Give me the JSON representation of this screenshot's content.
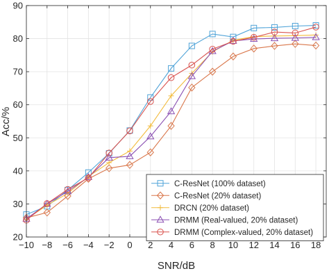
{
  "chart_data": {
    "type": "line",
    "xlabel": "SNR/dB",
    "ylabel": "Acc/%",
    "xlim": [
      -10,
      19
    ],
    "ylim": [
      20,
      90
    ],
    "xticks": [
      -10,
      -8,
      -6,
      -4,
      -2,
      0,
      2,
      4,
      6,
      8,
      10,
      12,
      14,
      16,
      18
    ],
    "xtick_labels": [
      "−10",
      "−8",
      "−6",
      "−4",
      "−2",
      "0",
      "2",
      "4",
      "6",
      "8",
      "10",
      "12",
      "14",
      "16",
      "18"
    ],
    "yticks": [
      20,
      30,
      40,
      50,
      60,
      70,
      80,
      90
    ],
    "ytick_labels": [
      "20",
      "30",
      "40",
      "50",
      "60",
      "70",
      "80",
      "90"
    ],
    "grid": true,
    "legend_position": "bottom-right",
    "x": [
      -10,
      -8,
      -6,
      -4,
      -2,
      0,
      2,
      4,
      6,
      8,
      10,
      12,
      14,
      16,
      18
    ],
    "series": [
      {
        "name": "C-ResNet (100% dataset)",
        "color": "#4fa3d8",
        "marker": "square",
        "values": [
          26.8,
          29.3,
          34.2,
          39.5,
          45.3,
          52.2,
          62.2,
          71.0,
          77.8,
          81.4,
          80.5,
          83.2,
          83.4,
          83.8,
          84.0
        ]
      },
      {
        "name": "C-ResNet (20% dataset)",
        "color": "#d9764a",
        "marker": "diamond",
        "values": [
          25.8,
          27.4,
          32.4,
          37.6,
          40.8,
          41.8,
          45.6,
          53.6,
          65.2,
          70.0,
          74.6,
          77.0,
          77.8,
          78.4,
          77.9
        ]
      },
      {
        "name": "DRCN (20% dataset)",
        "color": "#f2bb3c",
        "marker": "plus",
        "values": [
          25.4,
          29.6,
          33.2,
          38.3,
          42.5,
          46.0,
          53.6,
          62.7,
          69.5,
          76.0,
          79.5,
          80.6,
          80.8,
          80.9,
          81.1
        ]
      },
      {
        "name": "DRMM (Real-valued, 20% dataset)",
        "color": "#8a4fb2",
        "marker": "triangle",
        "values": [
          25.5,
          30.0,
          33.8,
          38.1,
          44.0,
          44.4,
          50.4,
          58.0,
          68.6,
          76.2,
          79.3,
          79.9,
          80.1,
          80.2,
          80.4
        ]
      },
      {
        "name": "DRMM (Complex-valued, 20% dataset)",
        "color": "#d9534f",
        "marker": "circle",
        "values": [
          25.1,
          30.1,
          34.4,
          37.9,
          45.4,
          52.1,
          61.0,
          68.2,
          72.0,
          76.8,
          79.2,
          80.4,
          82.0,
          81.7,
          83.5
        ]
      }
    ]
  }
}
